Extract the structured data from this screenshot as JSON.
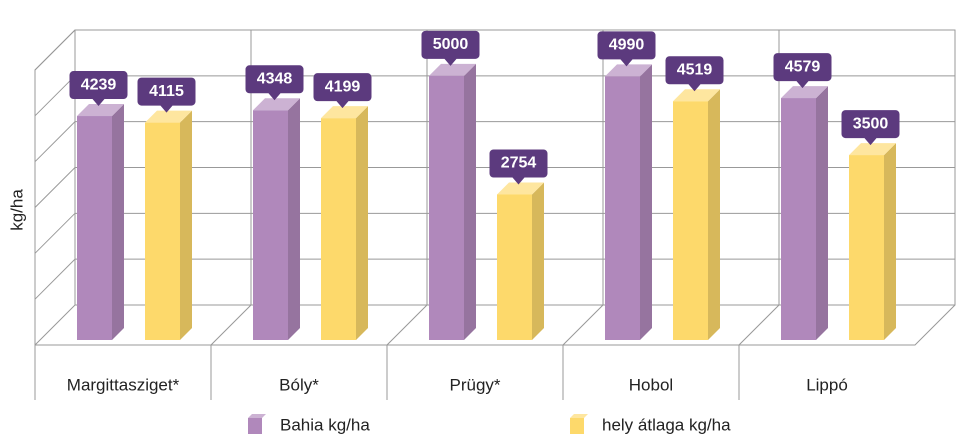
{
  "chart_data": {
    "type": "bar3d",
    "y_label": "kg/ha",
    "categories": [
      "Margittasziget*",
      "Bóly*",
      "Prügy*",
      "Hobol",
      "Lippó"
    ],
    "series": [
      {
        "name": "Bahia kg/ha",
        "color": "#b088bb",
        "values": [
          4239,
          4348,
          5000,
          4990,
          4579
        ]
      },
      {
        "name": "hely átlaga kg/ha",
        "color": "#fdd96b",
        "values": [
          4115,
          4199,
          2754,
          4519,
          3500
        ]
      }
    ],
    "ylim": [
      0,
      6000
    ],
    "yticks": [
      0,
      1000,
      2000,
      3000,
      4000,
      5000,
      6000
    ],
    "grid": true
  }
}
